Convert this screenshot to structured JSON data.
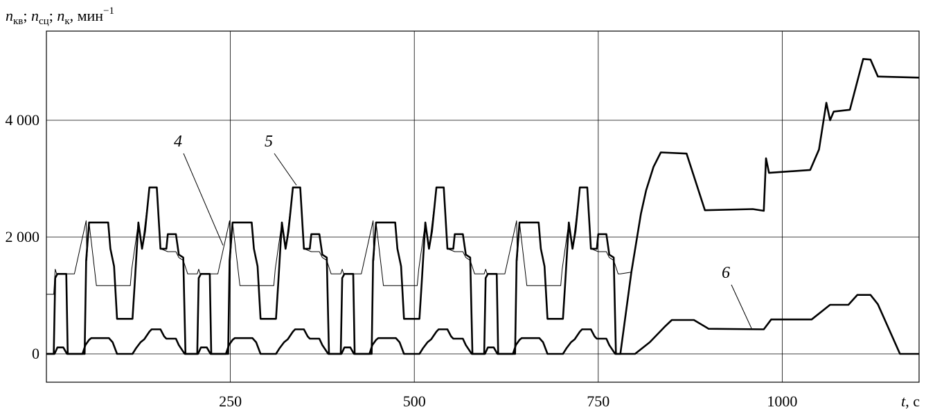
{
  "chart_data": {
    "type": "line",
    "ylabel_parts": [
      "n",
      "кв",
      "; ",
      "n",
      "сц",
      "; ",
      "n",
      "к",
      ", мин",
      "−1"
    ],
    "xlabel_parts": [
      "t",
      ", с"
    ],
    "xlim": [
      0,
      1186
    ],
    "ylim": [
      -485,
      5527
    ],
    "xticks": [
      250,
      500,
      750,
      1000
    ],
    "yticks": [
      0,
      {
        "value": 2000,
        "label": "2 000"
      },
      {
        "value": 4000,
        "label": "4 000"
      }
    ],
    "grid": true,
    "series": [
      {
        "name": "4",
        "color": "#000000",
        "x": [
          0,
          10,
          12,
          14,
          38,
          54,
          55,
          58,
          68,
          114,
          116,
          125,
          130,
          140,
          150,
          155,
          165,
          176,
          180,
          186,
          192,
          195,
          205,
          207,
          209,
          233,
          249,
          250,
          253,
          263,
          309,
          311,
          320,
          325,
          335,
          345,
          350,
          360,
          371,
          375,
          381,
          387,
          390,
          400,
          402,
          404,
          428,
          444,
          445,
          448,
          458,
          504,
          506,
          515,
          520,
          530,
          540,
          545,
          555,
          566,
          570,
          576,
          582,
          585,
          595,
          597,
          599,
          623,
          639,
          640,
          643,
          653,
          699,
          701,
          710,
          715,
          725,
          735,
          740,
          750,
          761,
          765,
          771,
          777,
          780,
          795
        ],
        "values": [
          1020,
          1020,
          1450,
          1370,
          1370,
          2280,
          1600,
          2250,
          1170,
          1170,
          1450,
          2250,
          1800,
          2850,
          2850,
          1800,
          1750,
          1750,
          1650,
          1600,
          1370,
          1370,
          1370,
          1450,
          1370,
          1370,
          2280,
          1600,
          2250,
          1170,
          1170,
          1450,
          2250,
          1800,
          2850,
          2850,
          1800,
          1750,
          1750,
          1650,
          1600,
          1370,
          1370,
          1370,
          1450,
          1370,
          1370,
          2280,
          1600,
          2250,
          1170,
          1170,
          1450,
          2250,
          1800,
          2850,
          2850,
          1800,
          1750,
          1750,
          1650,
          1600,
          1370,
          1370,
          1370,
          1450,
          1370,
          1370,
          2280,
          1600,
          2250,
          1170,
          1170,
          1450,
          2250,
          1800,
          2850,
          2850,
          1800,
          1750,
          1750,
          1650,
          1600,
          1370,
          1370,
          1400
        ]
      },
      {
        "name": "5",
        "color": "#000000",
        "x": [
          0,
          10,
          12,
          15,
          27,
          29,
          52,
          54,
          58,
          84,
          87,
          92,
          96,
          117,
          120,
          125,
          130,
          134,
          140,
          150,
          155,
          163,
          165,
          176,
          180,
          186,
          189,
          195,
          205,
          207,
          210,
          222,
          224,
          247,
          249,
          253,
          279,
          282,
          287,
          291,
          312,
          315,
          320,
          325,
          329,
          335,
          345,
          350,
          358,
          360,
          371,
          375,
          381,
          384,
          390,
          400,
          402,
          405,
          417,
          419,
          442,
          444,
          448,
          474,
          477,
          482,
          486,
          507,
          510,
          515,
          520,
          524,
          530,
          540,
          545,
          553,
          555,
          566,
          570,
          576,
          579,
          585,
          595,
          597,
          600,
          612,
          614,
          637,
          639,
          643,
          669,
          672,
          677,
          681,
          702,
          705,
          710,
          715,
          719,
          725,
          735,
          740,
          748,
          750,
          761,
          765,
          771,
          774,
          780,
          795,
          808,
          815,
          825,
          835,
          870,
          895,
          960,
          975,
          978,
          982,
          1038,
          1050,
          1060,
          1065,
          1070,
          1092,
          1110,
          1120,
          1130,
          1186
        ],
        "values": [
          0,
          0,
          1300,
          1370,
          1370,
          0,
          0,
          1600,
          2250,
          2250,
          1800,
          1500,
          600,
          600,
          1200,
          2250,
          1800,
          2100,
          2850,
          2850,
          1800,
          1800,
          2050,
          2050,
          1700,
          1650,
          0,
          0,
          0,
          1300,
          1370,
          1370,
          0,
          0,
          1600,
          2250,
          2250,
          1800,
          1500,
          600,
          600,
          1200,
          2250,
          1800,
          2100,
          2850,
          2850,
          1800,
          1800,
          2050,
          2050,
          1700,
          1650,
          0,
          0,
          0,
          1300,
          1370,
          1370,
          0,
          0,
          1600,
          2250,
          2250,
          1800,
          1500,
          600,
          600,
          1200,
          2250,
          1800,
          2100,
          2850,
          2850,
          1800,
          1800,
          2050,
          2050,
          1700,
          1650,
          0,
          0,
          0,
          1300,
          1370,
          1370,
          0,
          0,
          1600,
          2250,
          2250,
          1800,
          1500,
          600,
          600,
          1200,
          2250,
          1800,
          2100,
          2850,
          2850,
          1800,
          1800,
          2050,
          2050,
          1700,
          1650,
          0,
          0,
          1400,
          2400,
          2800,
          3200,
          3450,
          3430,
          2460,
          2480,
          2450,
          3350,
          3100,
          3150,
          3500,
          4300,
          4000,
          4150,
          4180,
          5050,
          5040,
          4750,
          4730
        ]
      },
      {
        "name": "6",
        "color": "#000000",
        "x": [
          0,
          11,
          15,
          23,
          28,
          49,
          53,
          58,
          61,
          85,
          90,
          96,
          117,
          122,
          128,
          133,
          140,
          143,
          155,
          160,
          163,
          176,
          180,
          188,
          195,
          206,
          210,
          218,
          223,
          244,
          248,
          253,
          256,
          280,
          285,
          291,
          312,
          317,
          323,
          328,
          335,
          338,
          350,
          355,
          358,
          371,
          375,
          383,
          390,
          401,
          405,
          413,
          418,
          439,
          443,
          448,
          451,
          475,
          480,
          486,
          507,
          512,
          518,
          523,
          530,
          533,
          545,
          550,
          553,
          566,
          570,
          578,
          585,
          596,
          600,
          608,
          613,
          634,
          638,
          643,
          646,
          670,
          675,
          681,
          702,
          707,
          713,
          718,
          725,
          728,
          740,
          745,
          748,
          761,
          765,
          773,
          800,
          820,
          840,
          850,
          880,
          900,
          975,
          985,
          1040,
          1065,
          1090,
          1102,
          1120,
          1130,
          1160,
          1186
        ],
        "values": [
          0,
          0,
          110,
          110,
          0,
          0,
          150,
          240,
          270,
          270,
          200,
          0,
          0,
          100,
          200,
          250,
          380,
          420,
          420,
          300,
          260,
          260,
          150,
          0,
          0,
          0,
          110,
          110,
          0,
          0,
          150,
          240,
          270,
          270,
          200,
          0,
          0,
          100,
          200,
          250,
          380,
          420,
          420,
          300,
          260,
          260,
          150,
          0,
          0,
          0,
          110,
          110,
          0,
          0,
          150,
          240,
          270,
          270,
          200,
          0,
          0,
          100,
          200,
          250,
          380,
          420,
          420,
          300,
          260,
          260,
          150,
          0,
          0,
          0,
          110,
          110,
          0,
          0,
          150,
          240,
          270,
          270,
          200,
          0,
          0,
          100,
          200,
          250,
          380,
          420,
          420,
          300,
          260,
          260,
          150,
          0,
          0,
          200,
          460,
          580,
          580,
          430,
          420,
          590,
          590,
          840,
          840,
          1010,
          1010,
          850,
          0,
          0
        ]
      }
    ]
  }
}
